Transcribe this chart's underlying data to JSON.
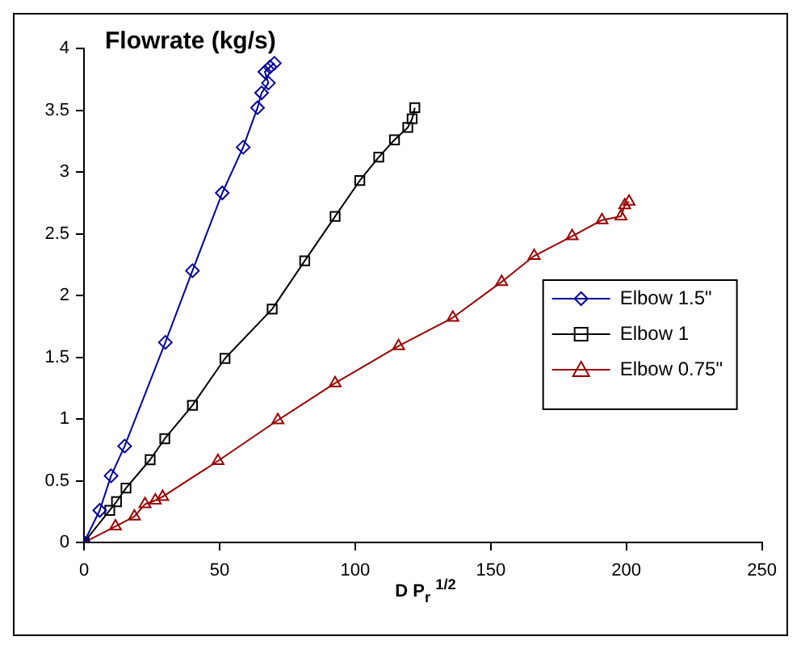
{
  "chart_data": {
    "type": "line",
    "title": "Flowrate (kg/s)",
    "xlabel": "D P$_{r}$ $^{1/2}$",
    "xlim": [
      0,
      250
    ],
    "xticks": [
      0,
      50,
      100,
      150,
      200,
      250
    ],
    "ylim": [
      0,
      4
    ],
    "yticks": [
      0,
      0.5,
      1,
      1.5,
      2,
      2.5,
      3,
      3.5,
      4
    ],
    "grid": false,
    "legend": "right",
    "line_style": "solid",
    "series": [
      {
        "name": "Elbow 1.5\"",
        "color": "#000099",
        "marker": "diamond",
        "x": [
          0,
          5.8,
          10,
          15,
          30,
          40,
          51,
          58.7,
          64,
          65.5,
          68,
          66.7,
          68.6,
          70.2
        ],
        "values": [
          0,
          0.26,
          0.54,
          0.78,
          1.62,
          2.2,
          2.83,
          3.2,
          3.52,
          3.64,
          3.72,
          3.81,
          3.85,
          3.88
        ]
      },
      {
        "name": "Elbow 1",
        "color": "#000000",
        "marker": "square",
        "x": [
          0,
          9.5,
          12,
          15.5,
          24.4,
          29.8,
          40,
          52,
          69.4,
          81.4,
          92.6,
          101.7,
          108.7,
          114.5,
          119.4,
          121,
          122
        ],
        "values": [
          0,
          0.26,
          0.33,
          0.44,
          0.67,
          0.84,
          1.11,
          1.49,
          1.89,
          2.28,
          2.64,
          2.93,
          3.12,
          3.26,
          3.36,
          3.43,
          3.52
        ]
      },
      {
        "name": "Elbow 0.75\"",
        "color": "#990000",
        "marker": "triangle",
        "x": [
          0,
          11.6,
          18.6,
          22.5,
          26.3,
          29,
          49.4,
          71.5,
          92.6,
          116,
          136,
          154,
          166,
          180,
          191,
          198,
          199.4,
          201
        ],
        "values": [
          0,
          0.13,
          0.21,
          0.31,
          0.34,
          0.37,
          0.66,
          0.99,
          1.29,
          1.59,
          1.82,
          2.11,
          2.32,
          2.48,
          2.61,
          2.64,
          2.73,
          2.76
        ]
      }
    ]
  }
}
